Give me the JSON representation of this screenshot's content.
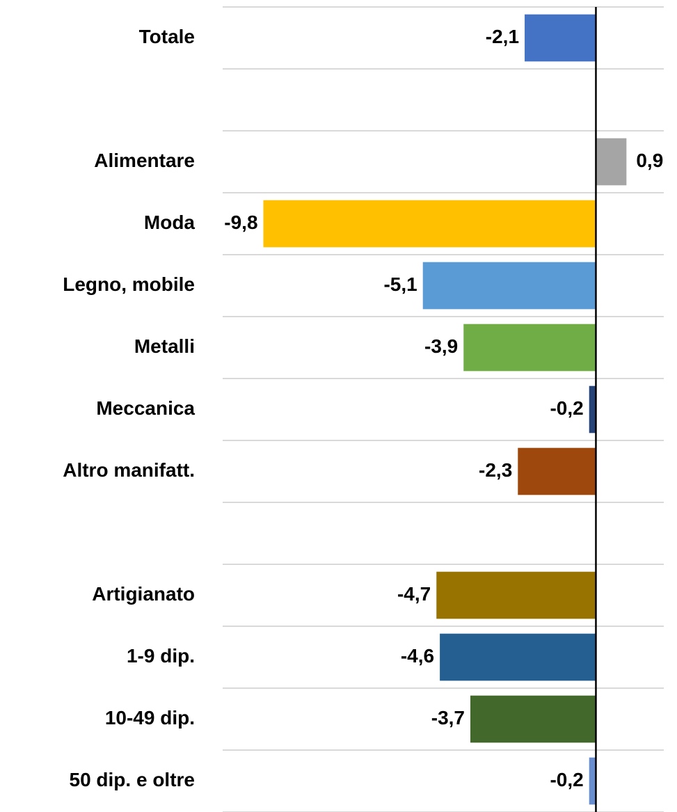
{
  "chart_data": {
    "type": "bar",
    "orientation": "horizontal",
    "categories": [
      "Totale",
      null,
      "Alimentare",
      "Moda",
      "Legno, mobile",
      "Metalli",
      "Meccanica",
      "Altro manifatt.",
      null,
      "Artigianato",
      "1-9 dip.",
      "10-49 dip.",
      "50 dip. e oltre"
    ],
    "values": [
      -2.1,
      null,
      0.9,
      -9.8,
      -5.1,
      -3.9,
      -0.2,
      -2.3,
      null,
      -4.7,
      -4.6,
      -3.7,
      -0.2
    ],
    "value_labels": [
      "-2,1",
      null,
      "0,9",
      "-9,8",
      "-5,1",
      "-3,9",
      "-0,2",
      "-2,3",
      null,
      "-4,7",
      "-4,6",
      "-3,7",
      "-0,2"
    ],
    "colors": [
      "#4472c4",
      null,
      "#a5a5a5",
      "#ffc000",
      "#5b9bd5",
      "#70ad47",
      "#264478",
      "#9e480e",
      null,
      "#997300",
      "#255e91",
      "#43682b",
      "#698ed0"
    ],
    "xlim": [
      -11,
      2
    ],
    "grid": true
  }
}
